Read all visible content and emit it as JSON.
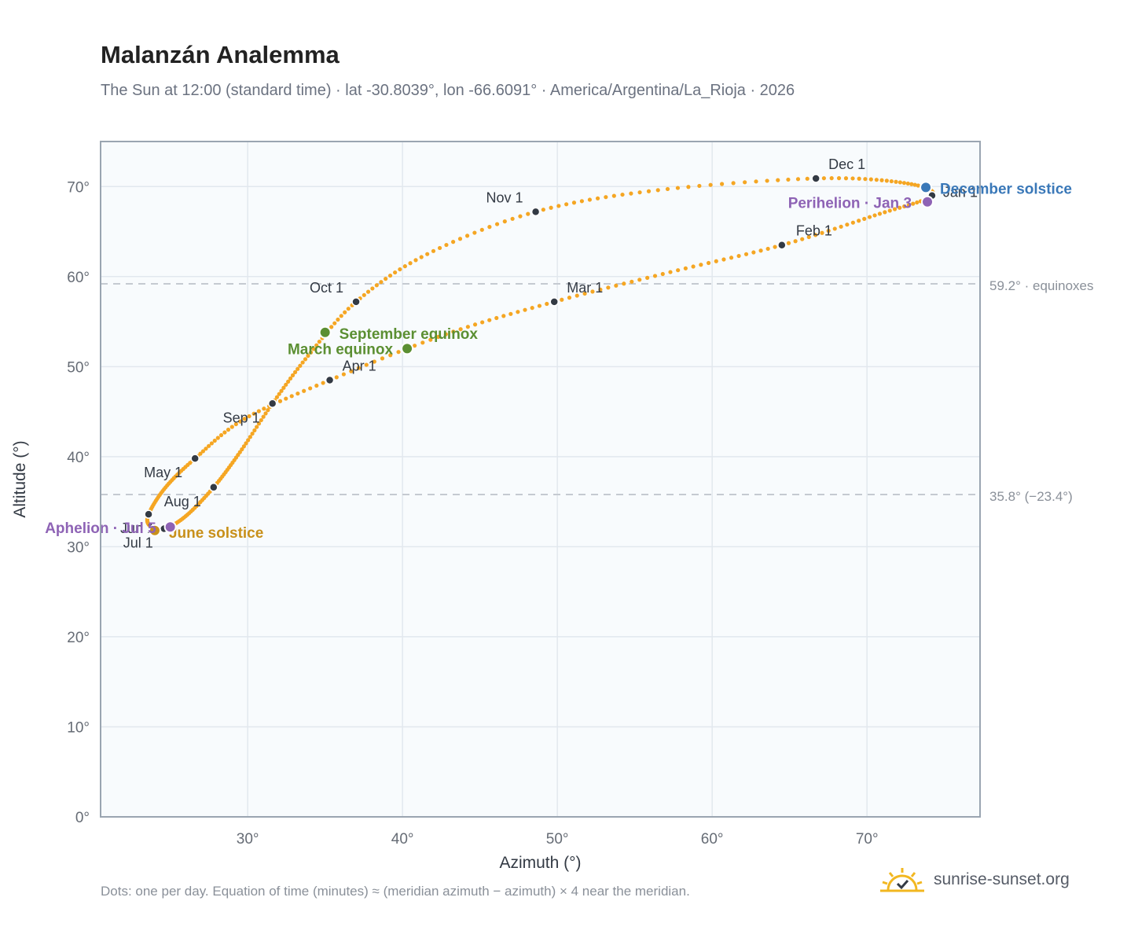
{
  "header": {
    "title": "Malanzán Analemma",
    "subtitle": "The Sun at 12:00 (standard time) · lat -30.8039°, lon -66.6091° · America/Argentina/La_Rioja · 2026"
  },
  "footer": {
    "note": "Dots: one per day. Equation of time (minutes) ≈ (meridian azimuth − azimuth) × 4 near the meridian.",
    "brand": "sunrise-sunset.org"
  },
  "colors": {
    "path": "#f5a623",
    "month_marker": "#333a44",
    "equinox": "#5b8f32",
    "solstice_june": "#c8901a",
    "solstice_december": "#3a78b8",
    "apsis": "#8e63b5",
    "plot_bg": "#f8fbfd",
    "grid": "#e2e8ee",
    "frame": "#9aa5b1",
    "reference_line": "#c5cad1"
  },
  "chart_data": {
    "type": "scatter",
    "xlabel": "Azimuth (°)",
    "ylabel": "Altitude (°)",
    "xlim": [
      20.5,
      77.3
    ],
    "ylim": [
      0,
      75
    ],
    "x_ticks": [
      30,
      40,
      50,
      60,
      70
    ],
    "y_ticks": [
      0,
      10,
      20,
      30,
      40,
      50,
      60,
      70
    ],
    "x_tick_format": "{v}°",
    "y_tick_format": "{v}°",
    "grid": true,
    "analemma_keypoints": [
      {
        "date": "Jan 1",
        "az": 74.2,
        "alt": 69.0
      },
      {
        "date": "Jan 15",
        "az": 70.5,
        "alt": 66.8
      },
      {
        "date": "Feb 1",
        "az": 64.5,
        "alt": 63.5
      },
      {
        "date": "Feb 15",
        "az": 57.3,
        "alt": 60.5
      },
      {
        "date": "Mar 1",
        "az": 49.8,
        "alt": 57.2
      },
      {
        "date": "Mar 15",
        "az": 42.8,
        "alt": 53.6
      },
      {
        "date": "Apr 1",
        "az": 35.3,
        "alt": 48.5
      },
      {
        "date": "Apr 15",
        "az": 29.8,
        "alt": 44.2
      },
      {
        "date": "May 1",
        "az": 26.6,
        "alt": 39.8
      },
      {
        "date": "May 15",
        "az": 24.7,
        "alt": 36.6
      },
      {
        "date": "Jun 1",
        "az": 23.6,
        "alt": 33.6
      },
      {
        "date": "Jun 15",
        "az": 23.7,
        "alt": 32.3
      },
      {
        "date": "Jul 1",
        "az": 24.6,
        "alt": 32.0
      },
      {
        "date": "Jul 15",
        "az": 26.0,
        "alt": 33.4
      },
      {
        "date": "Aug 1",
        "az": 27.8,
        "alt": 36.6
      },
      {
        "date": "Aug 15",
        "az": 29.5,
        "alt": 40.5
      },
      {
        "date": "Sep 1",
        "az": 31.6,
        "alt": 45.9
      },
      {
        "date": "Sep 15",
        "az": 33.9,
        "alt": 51.2
      },
      {
        "date": "Oct 1",
        "az": 37.0,
        "alt": 57.2
      },
      {
        "date": "Oct 15",
        "az": 41.6,
        "alt": 62.5
      },
      {
        "date": "Nov 1",
        "az": 48.6,
        "alt": 67.2
      },
      {
        "date": "Nov 15",
        "az": 56.5,
        "alt": 69.6
      },
      {
        "date": "Dec 1",
        "az": 66.7,
        "alt": 70.9
      },
      {
        "date": "Dec 15",
        "az": 72.4,
        "alt": 70.4
      },
      {
        "date": "Jan 1",
        "az": 74.2,
        "alt": 69.0
      }
    ],
    "month_markers": [
      {
        "label": "Jan 1",
        "az": 74.2,
        "alt": 69.0,
        "anchor": "start",
        "dx": 14,
        "dy": 2
      },
      {
        "label": "Feb 1",
        "az": 64.5,
        "alt": 63.5,
        "anchor": "start",
        "dx": 18,
        "dy": -12
      },
      {
        "label": "Mar 1",
        "az": 49.8,
        "alt": 57.2,
        "anchor": "start",
        "dx": 16,
        "dy": -12
      },
      {
        "label": "Apr 1",
        "az": 35.3,
        "alt": 48.5,
        "anchor": "start",
        "dx": 16,
        "dy": -12
      },
      {
        "label": "May 1",
        "az": 26.6,
        "alt": 39.8,
        "anchor": "end",
        "dx": -16,
        "dy": 24
      },
      {
        "label": "Jun 1",
        "az": 23.6,
        "alt": 33.6,
        "anchor": "end",
        "dx": 8,
        "dy": 24
      },
      {
        "label": "Jul 1",
        "az": 24.6,
        "alt": 32.0,
        "anchor": "end",
        "dx": -14,
        "dy": 24
      },
      {
        "label": "Aug 1",
        "az": 27.8,
        "alt": 36.6,
        "anchor": "end",
        "dx": -16,
        "dy": 24
      },
      {
        "label": "Sep 1",
        "az": 31.6,
        "alt": 45.9,
        "anchor": "end",
        "dx": -16,
        "dy": 24
      },
      {
        "label": "Oct 1",
        "az": 37.0,
        "alt": 57.2,
        "anchor": "end",
        "dx": -16,
        "dy": -12
      },
      {
        "label": "Nov 1",
        "az": 48.6,
        "alt": 67.2,
        "anchor": "end",
        "dx": -16,
        "dy": -12
      },
      {
        "label": "Dec 1",
        "az": 66.7,
        "alt": 70.9,
        "anchor": "start",
        "dx": 16,
        "dy": -12
      }
    ],
    "events": [
      {
        "label": "March equinox",
        "az": 40.3,
        "alt": 52.0,
        "color": "#5b8f32",
        "anchor": "end",
        "dx": -18,
        "dy": 7
      },
      {
        "label": "September equinox",
        "az": 35.0,
        "alt": 53.8,
        "color": "#5b8f32",
        "anchor": "start",
        "dx": 18,
        "dy": 8
      },
      {
        "label": "June solstice",
        "az": 24.0,
        "alt": 31.8,
        "color": "#c8901a",
        "anchor": "start",
        "dx": 18,
        "dy": 9
      },
      {
        "label": "December solstice",
        "az": 73.8,
        "alt": 69.9,
        "color": "#3a78b8",
        "anchor": "start",
        "dx": 18,
        "dy": 8
      }
    ],
    "apsides": [
      {
        "label": "Aphelion · Jul 5",
        "az": 25.0,
        "alt": 32.2,
        "color": "#8e63b5",
        "anchor": "end",
        "dx": -18,
        "dy": 8
      },
      {
        "label": "Perihelion · Jan 3",
        "az": 73.9,
        "alt": 68.3,
        "color": "#8e63b5",
        "anchor": "end",
        "dx": -20,
        "dy": 8
      }
    ],
    "reference_lines": [
      {
        "alt": 59.2,
        "label": "59.2° · equinoxes"
      },
      {
        "alt": 35.8,
        "label": "35.8° (−23.4°)"
      }
    ]
  }
}
